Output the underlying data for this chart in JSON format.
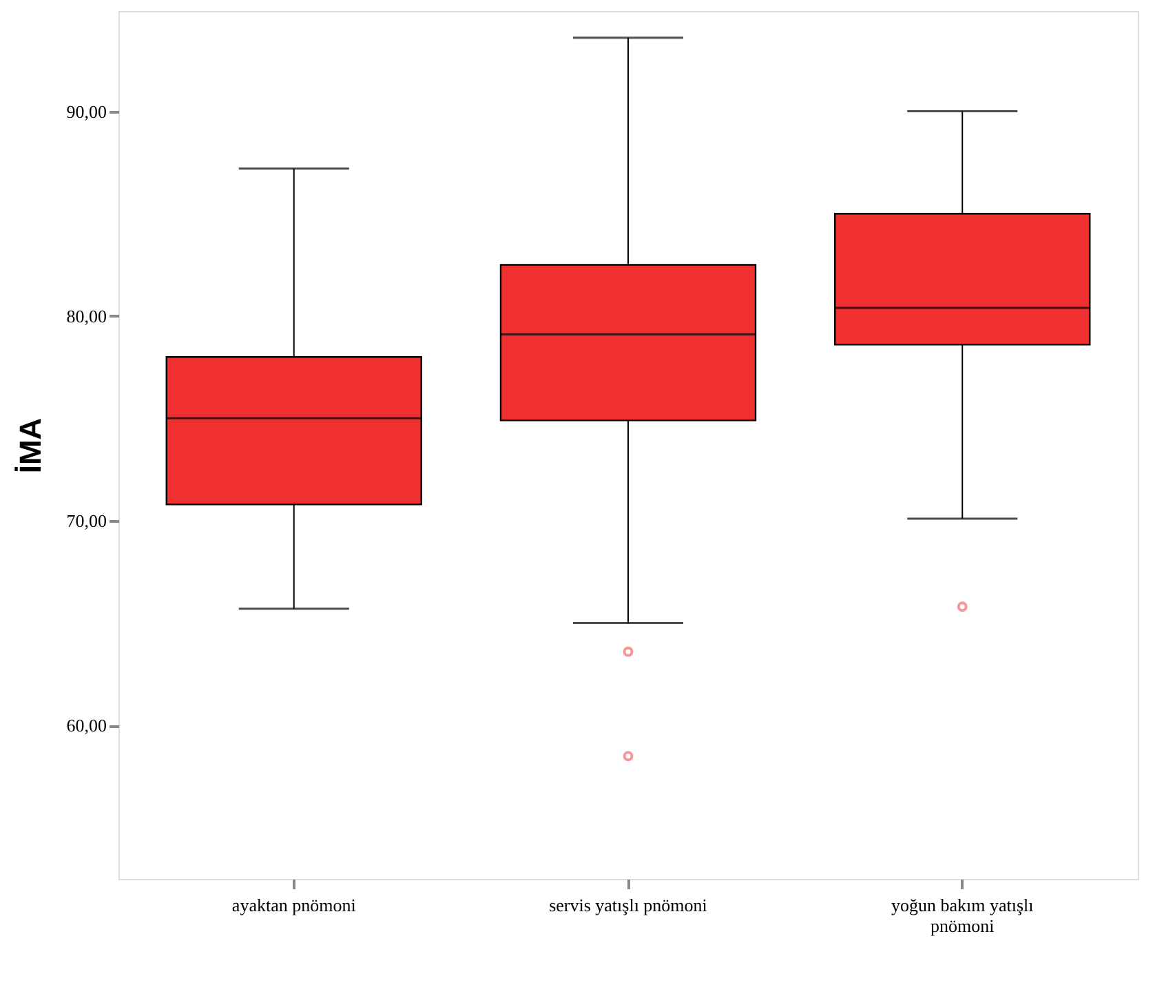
{
  "chart_data": {
    "type": "box",
    "ylabel": "İMA",
    "color": "#f03030",
    "categories": [
      "ayaktan pnömoni",
      "servis yatışlı pnömoni",
      "yoğun bakım yatışlı pnömoni"
    ],
    "boxes": [
      {
        "low": 65.7,
        "q1": 70.8,
        "median": 75.0,
        "q3": 78.0,
        "high": 87.2
      },
      {
        "low": 65.0,
        "q1": 74.9,
        "median": 79.1,
        "q3": 82.5,
        "high": 93.6,
        "outliers": [
          63.6,
          58.5
        ]
      },
      {
        "low": 70.1,
        "q1": 78.6,
        "median": 80.4,
        "q3": 85.0,
        "high": 90.0,
        "outliers": [
          65.8
        ]
      }
    ],
    "ylim": [
      52.5,
      94.9
    ],
    "yticks": [
      {
        "value": 60,
        "label": "60,00"
      },
      {
        "value": 70,
        "label": "70,00"
      },
      {
        "value": 80,
        "label": "80,00"
      },
      {
        "value": 90,
        "label": "90,00"
      }
    ],
    "grid": false
  }
}
